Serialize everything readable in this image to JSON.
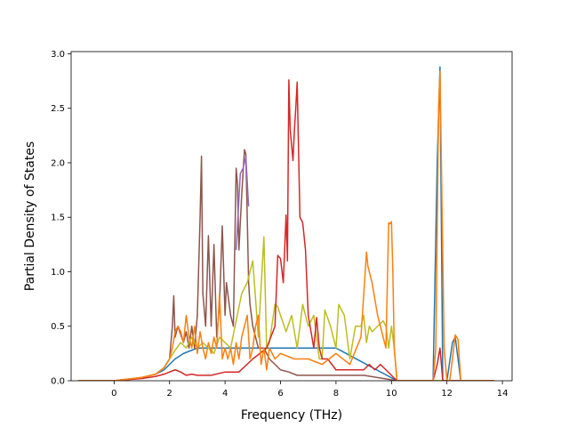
{
  "chart_data": {
    "type": "line",
    "title": "",
    "xlabel": "Frequency (THz)",
    "ylabel": "Partial Density of States",
    "xlim": [
      -1.55,
      14.35
    ],
    "ylim": [
      0,
      3.02
    ],
    "xticks": [
      0,
      2,
      4,
      6,
      8,
      10,
      12,
      14
    ],
    "yticks": [
      0.0,
      0.5,
      1.0,
      1.5,
      2.0,
      2.5,
      3.0
    ],
    "xtick_labels": [
      "0",
      "2",
      "4",
      "6",
      "8",
      "10",
      "12",
      "14"
    ],
    "ytick_labels": [
      "0.0",
      "0.5",
      "1.0",
      "1.5",
      "2.0",
      "2.5",
      "3.0"
    ],
    "grid": false,
    "legend": "none",
    "series": [
      {
        "color": "#1f77b4",
        "x": [
          -1.3,
          0,
          1,
          1.5,
          1.8,
          2.0,
          2.2,
          2.5,
          3.0,
          5.0,
          8.0,
          10.2,
          11.5,
          11.65,
          11.75,
          11.85,
          12.0,
          12.2,
          12.3,
          12.4,
          12.5,
          13.7
        ],
        "y": [
          0,
          0,
          0.03,
          0.06,
          0.1,
          0.15,
          0.2,
          0.25,
          0.3,
          0.3,
          0.3,
          0.0,
          0.0,
          2.0,
          2.88,
          0.0,
          0.0,
          0.35,
          0.4,
          0.2,
          0.0,
          0.0
        ]
      },
      {
        "color": "#8c564b",
        "x": [
          -1.3,
          0,
          1.0,
          1.5,
          1.8,
          2.0,
          2.1,
          2.15,
          2.2,
          2.3,
          2.5,
          2.6,
          2.7,
          2.8,
          2.9,
          3.0,
          3.1,
          3.15,
          3.2,
          3.3,
          3.4,
          3.5,
          3.6,
          3.7,
          3.8,
          3.9,
          4.0,
          4.05,
          4.1,
          4.2,
          4.3,
          4.4,
          4.45,
          4.5,
          4.6,
          4.7,
          4.75,
          4.8,
          4.85,
          4.9,
          5.0,
          5.2,
          5.4,
          5.6,
          5.8,
          6.0,
          6.3,
          6.6,
          7.0,
          8.0,
          9.0,
          10.2,
          13.7
        ],
        "y": [
          0,
          0,
          0.03,
          0.06,
          0.12,
          0.2,
          0.5,
          0.78,
          0.4,
          0.5,
          0.35,
          0.45,
          0.3,
          0.5,
          0.3,
          0.6,
          1.5,
          2.06,
          0.8,
          0.5,
          1.33,
          0.5,
          1.25,
          0.4,
          0.7,
          1.42,
          0.6,
          0.9,
          0.8,
          0.6,
          0.5,
          1.95,
          1.8,
          1.2,
          1.7,
          2.12,
          2.08,
          1.5,
          0.9,
          0.7,
          0.5,
          0.3,
          0.3,
          0.2,
          0.15,
          0.1,
          0.08,
          0.05,
          0.05,
          0.05,
          0.05,
          0.0,
          0.0
        ]
      },
      {
        "color": "#9467bd",
        "x": [
          4.4,
          4.55,
          4.65,
          4.75,
          4.85
        ],
        "y": [
          1.2,
          1.9,
          1.95,
          2.05,
          1.6
        ]
      },
      {
        "color": "#bcbd22",
        "x": [
          -1.3,
          0,
          1.0,
          1.5,
          1.8,
          2.0,
          2.2,
          2.4,
          2.6,
          2.8,
          3.0,
          3.2,
          3.4,
          3.6,
          3.8,
          4.0,
          4.2,
          4.4,
          4.6,
          4.8,
          5.0,
          5.2,
          5.4,
          5.5,
          5.6,
          5.8,
          5.9,
          6.0,
          6.2,
          6.4,
          6.6,
          6.8,
          7.0,
          7.2,
          7.4,
          7.5,
          7.6,
          7.8,
          8.0,
          8.1,
          8.3,
          8.5,
          8.7,
          8.9,
          9.0,
          9.1,
          9.2,
          9.3,
          9.5,
          9.7,
          9.8,
          9.9,
          10.0,
          10.1,
          10.2,
          13.7
        ],
        "y": [
          0,
          0,
          0.03,
          0.06,
          0.12,
          0.2,
          0.28,
          0.35,
          0.3,
          0.4,
          0.3,
          0.35,
          0.3,
          0.25,
          0.4,
          0.35,
          0.3,
          0.55,
          0.8,
          0.9,
          1.1,
          0.4,
          1.32,
          0.3,
          0.35,
          0.7,
          0.68,
          0.6,
          0.45,
          0.6,
          0.3,
          0.7,
          0.5,
          0.6,
          0.2,
          0.2,
          0.65,
          0.5,
          0.3,
          0.7,
          0.6,
          0.2,
          0.5,
          0.5,
          0.6,
          0.35,
          0.5,
          0.45,
          0.5,
          0.55,
          0.5,
          0.3,
          0.5,
          0.3,
          0.0,
          0.0
        ]
      },
      {
        "color": "#d62728",
        "x": [
          -1.3,
          0,
          1.0,
          1.5,
          1.8,
          2.0,
          2.2,
          2.4,
          2.6,
          2.8,
          3.0,
          3.5,
          4.0,
          4.5,
          5.0,
          5.5,
          5.8,
          5.9,
          6.0,
          6.1,
          6.2,
          6.25,
          6.3,
          6.35,
          6.45,
          6.5,
          6.55,
          6.6,
          6.7,
          6.8,
          6.9,
          7.0,
          7.2,
          7.3,
          7.4,
          7.5,
          7.7,
          8.0,
          9.0,
          9.2,
          9.4,
          9.6,
          9.8,
          10.0,
          10.2,
          11.5,
          11.65,
          11.75,
          11.85,
          12.0,
          13.7
        ],
        "y": [
          0,
          0,
          0.02,
          0.04,
          0.06,
          0.08,
          0.1,
          0.08,
          0.05,
          0.06,
          0.05,
          0.05,
          0.08,
          0.08,
          0.2,
          0.3,
          0.5,
          1.15,
          1.12,
          0.9,
          1.52,
          1.1,
          2.76,
          2.3,
          2.02,
          2.3,
          2.5,
          2.74,
          1.5,
          1.45,
          1.2,
          0.6,
          0.3,
          0.58,
          0.3,
          0.2,
          0.2,
          0.1,
          0.1,
          0.15,
          0.1,
          0.15,
          0.1,
          0.05,
          0.0,
          0.0,
          0.15,
          0.3,
          0.0,
          0.0,
          0.0
        ]
      },
      {
        "color": "#ff7f0e",
        "x": [
          -1.3,
          0,
          1.0,
          1.5,
          1.8,
          2.0,
          2.1,
          2.2,
          2.3,
          2.4,
          2.5,
          2.6,
          2.7,
          2.8,
          2.9,
          3.0,
          3.1,
          3.2,
          3.3,
          3.4,
          3.5,
          3.6,
          3.7,
          3.8,
          3.9,
          4.0,
          4.1,
          4.2,
          4.3,
          4.4,
          4.5,
          4.6,
          4.7,
          4.8,
          4.9,
          5.0,
          5.1,
          5.2,
          5.3,
          5.4,
          5.5,
          5.6,
          5.8,
          6.0,
          6.5,
          7.0,
          7.5,
          8.0,
          8.5,
          8.9,
          9.1,
          9.15,
          9.2,
          9.3,
          9.5,
          9.6,
          9.7,
          9.8,
          9.9,
          9.95,
          10.0,
          10.05,
          10.1,
          10.2,
          11.5,
          11.6,
          11.7,
          11.75,
          11.8,
          11.9,
          12.0,
          12.1,
          12.2,
          12.3,
          12.4,
          12.5,
          13.7
        ],
        "y": [
          0,
          0,
          0.03,
          0.06,
          0.12,
          0.2,
          0.3,
          0.45,
          0.5,
          0.45,
          0.35,
          0.6,
          0.4,
          0.3,
          0.5,
          0.25,
          0.45,
          0.3,
          0.2,
          0.35,
          0.25,
          0.4,
          0.3,
          0.8,
          0.2,
          0.3,
          0.2,
          0.3,
          0.15,
          0.35,
          0.2,
          0.4,
          0.5,
          0.6,
          0.2,
          0.3,
          0.5,
          0.6,
          0.15,
          0.3,
          0.1,
          0.3,
          0.2,
          0.25,
          0.2,
          0.2,
          0.15,
          0.25,
          0.15,
          0.4,
          1.18,
          1.05,
          1.0,
          0.9,
          0.6,
          0.5,
          0.4,
          0.3,
          1.45,
          1.44,
          1.46,
          1.0,
          0.3,
          0.0,
          0.0,
          0.3,
          2.5,
          2.84,
          2.0,
          0.3,
          0.0,
          0.0,
          0.2,
          0.42,
          0.38,
          0.0,
          0.0
        ]
      }
    ]
  }
}
